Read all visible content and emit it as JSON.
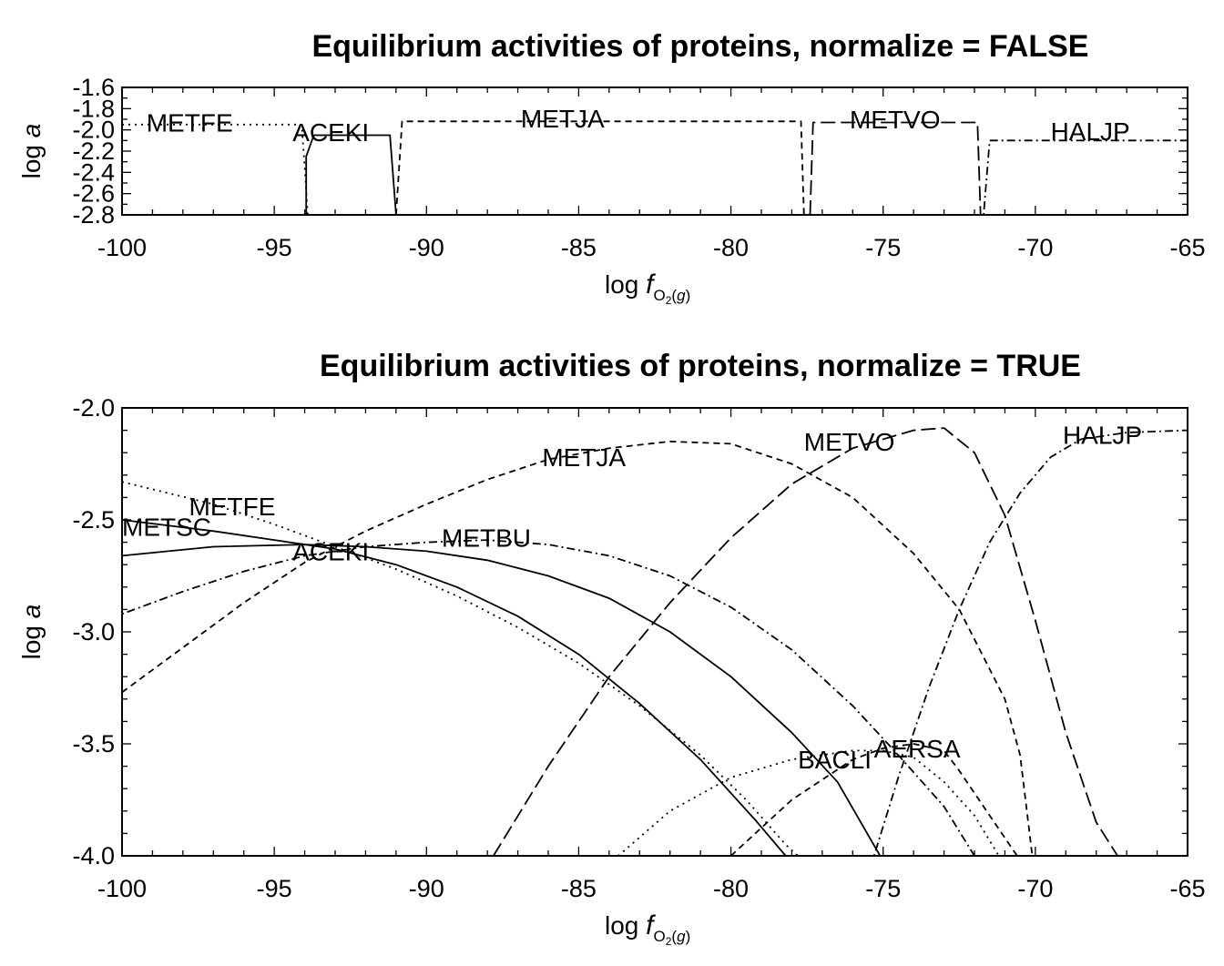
{
  "chart_data": [
    {
      "type": "line",
      "title": "Equilibrium activities of proteins, normalize = FALSE",
      "xlabel": {
        "prefix": "log ",
        "italic": "f",
        "sub_main": "O",
        "sub_2": "2",
        "sub_open": "(",
        "sub_g": "g",
        "sub_close": ")"
      },
      "ylabel": {
        "prefix": "log ",
        "italic": "a"
      },
      "xlim": [
        -100,
        -65
      ],
      "ylim": [
        -2.8,
        -1.6
      ],
      "xticks": [
        "-100",
        "-95",
        "-90",
        "-85",
        "-80",
        "-75",
        "-70",
        "-65"
      ],
      "yticks": [
        "-1.6",
        "-1.8",
        "-2.0",
        "-2.2",
        "-2.4",
        "-2.6",
        "-2.8"
      ],
      "series": [
        {
          "name": "METFE",
          "style": "dotted",
          "label_at": [
            -99.2,
            -1.93
          ],
          "points": [
            [
              -100,
              -1.95
            ],
            [
              -94.1,
              -1.95
            ],
            [
              -94.0,
              -2.35
            ],
            [
              -93.9,
              -2.8
            ]
          ]
        },
        {
          "name": "ACEKI",
          "style": "solid",
          "label_at": [
            -94.4,
            -2.02
          ],
          "points": [
            [
              -93.95,
              -2.8
            ],
            [
              -93.95,
              -2.25
            ],
            [
              -93.7,
              -2.05
            ],
            [
              -91.2,
              -2.05
            ],
            [
              -91.0,
              -2.8
            ]
          ]
        },
        {
          "name": "METJA",
          "style": "dashed",
          "label_at": [
            -86.9,
            -1.89
          ],
          "points": [
            [
              -91.0,
              -2.8
            ],
            [
              -90.8,
              -1.92
            ],
            [
              -77.7,
              -1.92
            ],
            [
              -77.6,
              -2.8
            ]
          ]
        },
        {
          "name": "METVO",
          "style": "longdash",
          "label_at": [
            -76.1,
            -1.9
          ],
          "points": [
            [
              -77.4,
              -2.8
            ],
            [
              -77.3,
              -1.93
            ],
            [
              -71.9,
              -1.93
            ],
            [
              -71.8,
              -2.8
            ]
          ]
        },
        {
          "name": "HALJP",
          "style": "dotdash",
          "label_at": [
            -69.5,
            -2.01
          ],
          "points": [
            [
              -71.7,
              -2.8
            ],
            [
              -71.5,
              -2.1
            ],
            [
              -65,
              -2.1
            ]
          ]
        }
      ]
    },
    {
      "type": "line",
      "title": "Equilibrium activities of proteins, normalize = TRUE",
      "xlabel": {
        "prefix": "log ",
        "italic": "f",
        "sub_main": "O",
        "sub_2": "2",
        "sub_open": "(",
        "sub_g": "g",
        "sub_close": ")"
      },
      "ylabel": {
        "prefix": "log ",
        "italic": "a"
      },
      "xlim": [
        -100,
        -65
      ],
      "ylim": [
        -4.0,
        -2.0
      ],
      "xticks": [
        "-100",
        "-95",
        "-90",
        "-85",
        "-80",
        "-75",
        "-70",
        "-65"
      ],
      "yticks": [
        "-2.0",
        "-2.5",
        "-3.0",
        "-3.5",
        "-4.0"
      ],
      "series": [
        {
          "name": "METFE",
          "style": "dotted",
          "label_at": [
            -97.8,
            -2.44
          ],
          "points": [
            [
              -100,
              -2.33
            ],
            [
              -97,
              -2.43
            ],
            [
              -95,
              -2.52
            ],
            [
              -93,
              -2.62
            ],
            [
              -91,
              -2.72
            ],
            [
              -89,
              -2.84
            ],
            [
              -87,
              -2.98
            ],
            [
              -85,
              -3.14
            ],
            [
              -83,
              -3.33
            ],
            [
              -81,
              -3.55
            ],
            [
              -79.5,
              -3.75
            ],
            [
              -78.2,
              -3.95
            ],
            [
              -77.8,
              -4.0
            ]
          ]
        },
        {
          "name": "METSC",
          "style": "solid",
          "label_at": [
            -100,
            -2.53
          ],
          "points": [
            [
              -100,
              -2.5
            ],
            [
              -97,
              -2.55
            ],
            [
              -95,
              -2.59
            ],
            [
              -93,
              -2.63
            ],
            [
              -91,
              -2.7
            ],
            [
              -89,
              -2.8
            ],
            [
              -87,
              -2.93
            ],
            [
              -85,
              -3.1
            ],
            [
              -83,
              -3.32
            ],
            [
              -81,
              -3.57
            ],
            [
              -79.2,
              -3.84
            ],
            [
              -78.2,
              -4.0
            ]
          ]
        },
        {
          "name": "ACEKI",
          "style": "solid",
          "label_at": [
            -94.4,
            -2.64
          ],
          "points": [
            [
              -100,
              -2.66
            ],
            [
              -97,
              -2.62
            ],
            [
              -94,
              -2.61
            ],
            [
              -92,
              -2.62
            ],
            [
              -90,
              -2.64
            ],
            [
              -88,
              -2.68
            ],
            [
              -86,
              -2.75
            ],
            [
              -84,
              -2.85
            ],
            [
              -82,
              -3.0
            ],
            [
              -80,
              -3.2
            ],
            [
              -78,
              -3.45
            ],
            [
              -76.5,
              -3.67
            ],
            [
              -75.1,
              -4.0
            ]
          ]
        },
        {
          "name": "METBU",
          "style": "dotdash",
          "label_at": [
            -89.5,
            -2.58
          ],
          "points": [
            [
              -100,
              -2.92
            ],
            [
              -98,
              -2.82
            ],
            [
              -96,
              -2.73
            ],
            [
              -94,
              -2.66
            ],
            [
              -92,
              -2.62
            ],
            [
              -90,
              -2.6
            ],
            [
              -88,
              -2.59
            ],
            [
              -86,
              -2.61
            ],
            [
              -84,
              -2.66
            ],
            [
              -82,
              -2.75
            ],
            [
              -80,
              -2.89
            ],
            [
              -78,
              -3.08
            ],
            [
              -76,
              -3.33
            ],
            [
              -74.5,
              -3.55
            ],
            [
              -73,
              -3.78
            ],
            [
              -72,
              -4.0
            ]
          ]
        },
        {
          "name": "METJA",
          "style": "dashed",
          "label_at": [
            -86.2,
            -2.22
          ],
          "points": [
            [
              -100,
              -3.27
            ],
            [
              -98,
              -3.07
            ],
            [
              -96,
              -2.87
            ],
            [
              -94,
              -2.69
            ],
            [
              -92,
              -2.55
            ],
            [
              -90,
              -2.43
            ],
            [
              -88,
              -2.32
            ],
            [
              -86,
              -2.23
            ],
            [
              -84,
              -2.18
            ],
            [
              -82,
              -2.15
            ],
            [
              -80,
              -2.16
            ],
            [
              -78,
              -2.25
            ],
            [
              -76,
              -2.4
            ],
            [
              -74,
              -2.65
            ],
            [
              -72.5,
              -2.9
            ],
            [
              -71,
              -3.3
            ],
            [
              -70.5,
              -3.55
            ],
            [
              -70.1,
              -4.0
            ]
          ]
        },
        {
          "name": "METVO",
          "style": "longdash",
          "label_at": [
            -77.6,
            -2.15
          ],
          "points": [
            [
              -87.8,
              -4.0
            ],
            [
              -86,
              -3.6
            ],
            [
              -84,
              -3.2
            ],
            [
              -82,
              -2.87
            ],
            [
              -80,
              -2.58
            ],
            [
              -78,
              -2.34
            ],
            [
              -76,
              -2.18
            ],
            [
              -74,
              -2.1
            ],
            [
              -73,
              -2.09
            ],
            [
              -72,
              -2.2
            ],
            [
              -71,
              -2.48
            ],
            [
              -70,
              -2.95
            ],
            [
              -69,
              -3.45
            ],
            [
              -68,
              -3.85
            ],
            [
              -67.3,
              -4.0
            ]
          ]
        },
        {
          "name": "HALJP",
          "style": "dotdash",
          "label_at": [
            -69.1,
            -2.12
          ],
          "points": [
            [
              -75.3,
              -4.0
            ],
            [
              -74.5,
              -3.65
            ],
            [
              -73.5,
              -3.25
            ],
            [
              -72.5,
              -2.9
            ],
            [
              -71.5,
              -2.6
            ],
            [
              -70.5,
              -2.38
            ],
            [
              -69.5,
              -2.22
            ],
            [
              -68.5,
              -2.14
            ],
            [
              -67,
              -2.11
            ],
            [
              -65,
              -2.1
            ]
          ]
        },
        {
          "name": "BACLI",
          "style": "dotted",
          "label_at": [
            -77.8,
            -3.57
          ],
          "points": [
            [
              -83.7,
              -4.0
            ],
            [
              -82,
              -3.8
            ],
            [
              -80,
              -3.65
            ],
            [
              -78,
              -3.57
            ],
            [
              -76,
              -3.53
            ],
            [
              -75,
              -3.53
            ],
            [
              -74,
              -3.56
            ],
            [
              -73,
              -3.67
            ],
            [
              -72,
              -3.82
            ],
            [
              -71.2,
              -4.0
            ]
          ]
        },
        {
          "name": "AERSA",
          "style": "dashed",
          "label_at": [
            -75.3,
            -3.52
          ],
          "points": [
            [
              -80,
              -4.0
            ],
            [
              -78,
              -3.75
            ],
            [
              -76,
              -3.57
            ],
            [
              -75,
              -3.52
            ],
            [
              -74,
              -3.5
            ],
            [
              -73,
              -3.53
            ],
            [
              -72.5,
              -3.62
            ],
            [
              -71.5,
              -3.82
            ],
            [
              -70.6,
              -4.0
            ]
          ]
        }
      ]
    }
  ]
}
